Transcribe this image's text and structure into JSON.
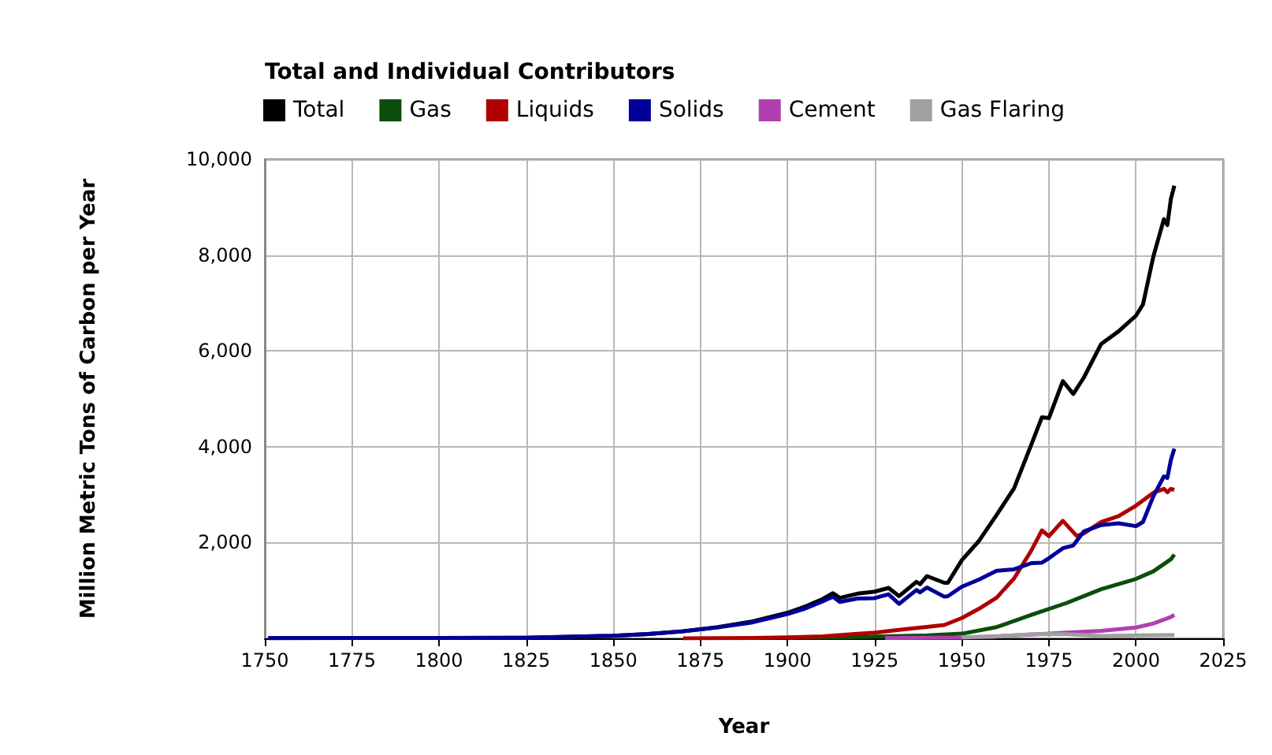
{
  "chart_data": {
    "type": "line",
    "title": "Total and Individual Contributors",
    "xlabel": "Year",
    "ylabel": "Million Metric Tons of Carbon per Year",
    "xlim": [
      1750,
      2025
    ],
    "xticks": [
      1750,
      1775,
      1800,
      1825,
      1850,
      1875,
      1900,
      1925,
      1950,
      1975,
      2000,
      2025
    ],
    "ylim": [
      0,
      10000
    ],
    "yticks": [
      {
        "value": 0,
        "label": null
      },
      {
        "value": 2000,
        "label": "2,000"
      },
      {
        "value": 4000,
        "label": "4,000"
      },
      {
        "value": 6000,
        "label": "6,000"
      },
      {
        "value": 8000,
        "label": "8,000"
      },
      {
        "value": 10000,
        "label": "10,000"
      }
    ],
    "grid": true,
    "legend": "top left",
    "marker": "none",
    "line_style": "solid",
    "series": [
      {
        "name": "Total",
        "color": "#000000",
        "x": [
          1751,
          1775,
          1800,
          1825,
          1850,
          1860,
          1870,
          1880,
          1890,
          1900,
          1905,
          1910,
          1913,
          1915,
          1920,
          1925,
          1929,
          1932,
          1937,
          1938,
          1940,
          1945,
          1946,
          1950,
          1955,
          1960,
          1965,
          1970,
          1973,
          1975,
          1979,
          1982,
          1985,
          1990,
          1995,
          2000,
          2002,
          2005,
          2008,
          2009,
          2010,
          2011
        ],
        "values": [
          3,
          7,
          8,
          14,
          54,
          91,
          147,
          236,
          356,
          534,
          663,
          819,
          943,
          845,
          932,
          975,
          1053,
          881,
          1180,
          1130,
          1299,
          1160,
          1160,
          1630,
          2040,
          2577,
          3130,
          4053,
          4615,
          4596,
          5369,
          5100,
          5440,
          6144,
          6408,
          6735,
          6970,
          7976,
          8749,
          8626,
          9167,
          9449
        ]
      },
      {
        "name": "Gas",
        "color": "#0b4d0b",
        "x": [
          1900,
          1920,
          1940,
          1950,
          1960,
          1970,
          1980,
          1990,
          2000,
          2005,
          2010,
          2011
        ],
        "values": [
          12,
          29,
          60,
          97,
          235,
          493,
          736,
          1026,
          1241,
          1400,
          1650,
          1750
        ]
      },
      {
        "name": "Liquids",
        "color": "#b00000",
        "x": [
          1870,
          1890,
          1900,
          1910,
          1920,
          1925,
          1930,
          1935,
          1940,
          1945,
          1950,
          1955,
          1960,
          1965,
          1970,
          1973,
          1975,
          1979,
          1983,
          1985,
          1990,
          1995,
          2000,
          2005,
          2008,
          2009,
          2010,
          2011
        ],
        "values": [
          1,
          9,
          20,
          40,
          95,
          120,
          160,
          200,
          240,
          280,
          423,
          620,
          850,
          1250,
          1839,
          2253,
          2131,
          2453,
          2137,
          2190,
          2429,
          2550,
          2770,
          3040,
          3120,
          3050,
          3120,
          3100
        ]
      },
      {
        "name": "Solids",
        "color": "#000099",
        "x": [
          1751,
          1775,
          1800,
          1825,
          1850,
          1860,
          1870,
          1880,
          1890,
          1900,
          1905,
          1910,
          1913,
          1915,
          1920,
          1925,
          1929,
          1932,
          1937,
          1938,
          1940,
          1945,
          1946,
          1950,
          1955,
          1960,
          1965,
          1970,
          1973,
          1975,
          1979,
          1982,
          1985,
          1990,
          1995,
          2000,
          2002,
          2005,
          2008,
          2009,
          2010,
          2011
        ],
        "values": [
          3,
          7,
          8,
          14,
          54,
          91,
          146,
          228,
          334,
          507,
          620,
          770,
          870,
          760,
          830,
          840,
          920,
          720,
          1010,
          960,
          1060,
          870,
          880,
          1078,
          1230,
          1410,
          1440,
          1571,
          1580,
          1673,
          1880,
          1940,
          2230,
          2365,
          2400,
          2342,
          2430,
          2970,
          3380,
          3350,
          3720,
          3960
        ]
      },
      {
        "name": "Cement",
        "color": "#b040b0",
        "x": [
          1928,
          1950,
          1960,
          1970,
          1980,
          1990,
          2000,
          2005,
          2010,
          2011
        ],
        "values": [
          10,
          18,
          43,
          78,
          120,
          157,
          226,
          310,
          446,
          490
        ]
      },
      {
        "name": "Gas Flaring",
        "color": "#a0a0a0",
        "x": [
          1950,
          1960,
          1970,
          1975,
          1980,
          1990,
          2000,
          2011
        ],
        "values": [
          23,
          39,
          87,
          92,
          86,
          50,
          61,
          70
        ]
      }
    ]
  }
}
